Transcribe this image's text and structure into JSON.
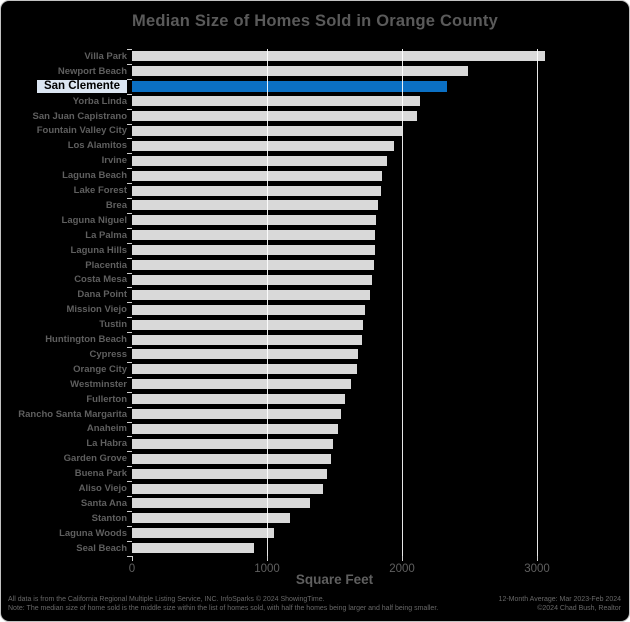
{
  "title": "Median Size of Homes Sold in Orange County",
  "chart_data": {
    "type": "bar",
    "orientation": "horizontal",
    "title": "Median Size of Homes Sold in Orange County",
    "xlabel": "Square Feet",
    "ylabel": "",
    "x_ticks": [
      0,
      1000,
      2000,
      3000
    ],
    "xlim": [
      0,
      3650
    ],
    "grid": "vertical-white-lines",
    "legend": "none",
    "background_color": "#000000",
    "text_color": "#5f5f5f",
    "bar_color": "#d9d9d9",
    "highlight": {
      "category": "San Clemente",
      "index": 2,
      "bar_color": "#0b70c4",
      "label_bg": "#dce6f2",
      "label_border": "#000000",
      "label_text_color": "#000000"
    },
    "categories": [
      "Villa Park",
      "Newport Beach",
      "San Clemente",
      "Yorba Linda",
      "San Juan Capistrano",
      "Fountain Valley City",
      "Los Alamitos",
      "Irvine",
      "Laguna Beach",
      "Lake Forest",
      "Brea",
      "Laguna Niguel",
      "La Palma",
      "Laguna Hills",
      "Placentia",
      "Costa Mesa",
      "Dana Point",
      "Mission Viejo",
      "Tustin",
      "Huntington Beach",
      "Cypress",
      "Orange City",
      "Westminster",
      "Fullerton",
      "Rancho Santa Margarita",
      "Anaheim",
      "La Habra",
      "Garden Grove",
      "Buena Park",
      "Aliso Viejo",
      "Santa Ana",
      "Stanton",
      "Laguna Woods",
      "Seal Beach"
    ],
    "values": [
      3060,
      2490,
      2330,
      2130,
      2110,
      2000,
      1940,
      1890,
      1850,
      1845,
      1820,
      1810,
      1800,
      1800,
      1795,
      1780,
      1760,
      1725,
      1710,
      1700,
      1675,
      1665,
      1625,
      1580,
      1550,
      1525,
      1485,
      1475,
      1445,
      1415,
      1320,
      1170,
      1055,
      900
    ]
  },
  "footer": {
    "line1_left": "All data is from the California Regional Multiple Listing Service, INC. InfoSparks © 2024 ShowingTime.",
    "line1_right": "12-Month Average: Mar 2023-Feb 2024",
    "line2_left": "Note: The median size of home sold is the middle size within the list of homes sold, with half the homes being larger and half being smaller.",
    "line2_right": "©2024 Chad Bush, Realtor"
  }
}
